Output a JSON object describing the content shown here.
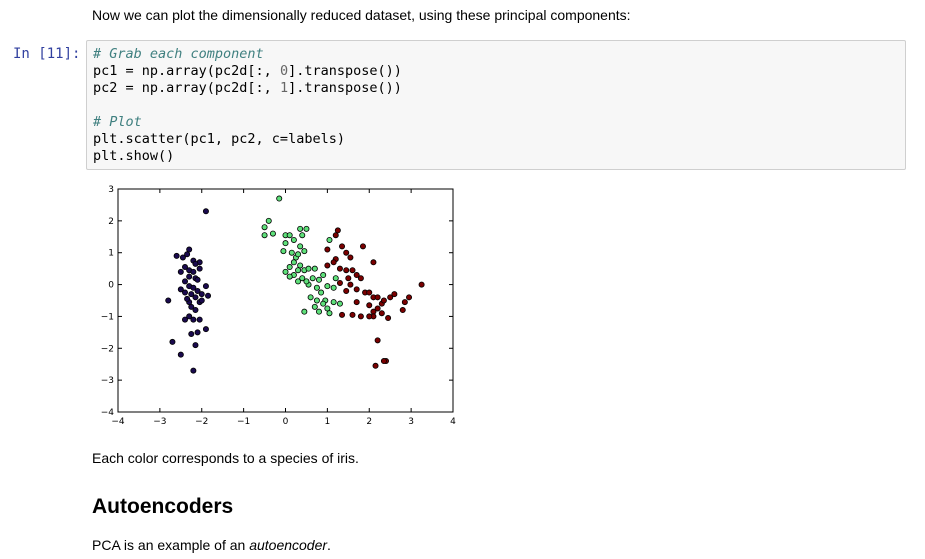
{
  "intro_text": "Now we can plot the dimensionally reduced dataset, using these principal components:",
  "cell": {
    "prompt": "In [11]:",
    "lines": [
      {
        "type": "comment",
        "text": "# Grab each component"
      },
      {
        "type": "code",
        "before": "pc1 = np.array(pc2d[:, ",
        "num": "0",
        "after": "].transpose())"
      },
      {
        "type": "code",
        "before": "pc2 = np.array(pc2d[:, ",
        "num": "1",
        "after": "].transpose())"
      },
      {
        "type": "blank",
        "text": ""
      },
      {
        "type": "comment",
        "text": "# Plot"
      },
      {
        "type": "code",
        "text": "plt.scatter(pc1, pc2, c=labels)"
      },
      {
        "type": "code",
        "text": "plt.show()"
      }
    ]
  },
  "chart_data": {
    "type": "scatter",
    "xlim": [
      -4,
      4
    ],
    "ylim": [
      -4,
      3
    ],
    "x_ticks": [
      "−4",
      "−3",
      "−2",
      "−1",
      "0",
      "1",
      "2",
      "3",
      "4"
    ],
    "y_ticks": [
      "−4",
      "−3",
      "−2",
      "−1",
      "0",
      "1",
      "2",
      "3"
    ],
    "grid": false,
    "colors": [
      "#1a0a4e",
      "#5ee07a",
      "#7a0000"
    ],
    "series": [
      {
        "color": "#1a0a4e",
        "points": [
          [
            -1.9,
            2.3
          ],
          [
            -2.6,
            0.9
          ],
          [
            -2.45,
            0.85
          ],
          [
            -2.3,
            1.1
          ],
          [
            -2.35,
            0.95
          ],
          [
            -2.2,
            0.75
          ],
          [
            -2.05,
            0.7
          ],
          [
            -2.15,
            0.65
          ],
          [
            -2.4,
            0.55
          ],
          [
            -2.5,
            0.4
          ],
          [
            -2.3,
            0.45
          ],
          [
            -2.2,
            0.4
          ],
          [
            -2.05,
            0.5
          ],
          [
            -2.3,
            0.25
          ],
          [
            -2.15,
            0.2
          ],
          [
            -2.4,
            0.1
          ],
          [
            -2.1,
            0.15
          ],
          [
            -1.9,
            -0.05
          ],
          [
            -2.0,
            -0.3
          ],
          [
            -1.85,
            -0.35
          ],
          [
            -2.3,
            -0.05
          ],
          [
            -2.2,
            -0.1
          ],
          [
            -2.1,
            -0.2
          ],
          [
            -2.4,
            -0.25
          ],
          [
            -2.25,
            -0.3
          ],
          [
            -2.15,
            -0.4
          ],
          [
            -2.3,
            -0.55
          ],
          [
            -2.05,
            -0.55
          ],
          [
            -2.25,
            -0.7
          ],
          [
            -2.15,
            -0.8
          ],
          [
            -2.3,
            -1.0
          ],
          [
            -2.2,
            -1.1
          ],
          [
            -2.05,
            -1.1
          ],
          [
            -1.9,
            -1.4
          ],
          [
            -2.1,
            -1.5
          ],
          [
            -2.25,
            -1.55
          ],
          [
            -2.4,
            -1.1
          ],
          [
            -2.7,
            -1.8
          ],
          [
            -2.5,
            -2.2
          ],
          [
            -2.15,
            -1.9
          ],
          [
            -2.2,
            -2.7
          ],
          [
            -2.8,
            -0.5
          ],
          [
            -2.0,
            -0.5
          ],
          [
            -2.35,
            -0.45
          ],
          [
            -2.5,
            -0.15
          ]
        ]
      },
      {
        "color": "#5ee07a",
        "points": [
          [
            -0.15,
            2.7
          ],
          [
            -0.4,
            2.0
          ],
          [
            -0.5,
            1.8
          ],
          [
            -0.5,
            1.55
          ],
          [
            -0.3,
            1.6
          ],
          [
            0.0,
            1.55
          ],
          [
            0.1,
            1.55
          ],
          [
            0.35,
            1.75
          ],
          [
            0.5,
            1.75
          ],
          [
            0.4,
            1.55
          ],
          [
            0.2,
            1.4
          ],
          [
            0.0,
            1.3
          ],
          [
            -0.05,
            1.05
          ],
          [
            0.15,
            1.0
          ],
          [
            0.35,
            1.2
          ],
          [
            0.45,
            1.05
          ],
          [
            0.25,
            0.85
          ],
          [
            0.2,
            0.7
          ],
          [
            0.35,
            0.6
          ],
          [
            0.1,
            0.55
          ],
          [
            0.3,
            0.45
          ],
          [
            0.45,
            0.45
          ],
          [
            0.55,
            0.5
          ],
          [
            0.7,
            0.5
          ],
          [
            0.0,
            0.4
          ],
          [
            0.2,
            0.3
          ],
          [
            0.4,
            0.2
          ],
          [
            0.65,
            0.2
          ],
          [
            0.8,
            0.15
          ],
          [
            0.1,
            0.25
          ],
          [
            0.3,
            0.1
          ],
          [
            0.55,
            0.0
          ],
          [
            0.75,
            -0.1
          ],
          [
            1.0,
            -0.05
          ],
          [
            0.85,
            -0.25
          ],
          [
            0.6,
            -0.4
          ],
          [
            0.75,
            -0.5
          ],
          [
            0.95,
            -0.5
          ],
          [
            0.9,
            -0.6
          ],
          [
            0.7,
            -0.7
          ],
          [
            1.0,
            -0.75
          ],
          [
            1.15,
            -0.55
          ],
          [
            1.3,
            -0.6
          ],
          [
            0.45,
            -0.85
          ],
          [
            0.8,
            -0.85
          ],
          [
            1.05,
            -0.9
          ],
          [
            1.05,
            1.4
          ],
          [
            1.2,
            0.2
          ],
          [
            0.5,
            0.1
          ],
          [
            0.9,
            0.3
          ],
          [
            1.15,
            -0.1
          ],
          [
            0.3,
            0.95
          ]
        ]
      },
      {
        "color": "#7a0000",
        "points": [
          [
            1.25,
            1.7
          ],
          [
            1.2,
            1.55
          ],
          [
            1.35,
            1.2
          ],
          [
            1.0,
            1.1
          ],
          [
            1.45,
            1.0
          ],
          [
            1.2,
            0.8
          ],
          [
            1.0,
            0.6
          ],
          [
            1.15,
            0.7
          ],
          [
            1.3,
            0.5
          ],
          [
            1.45,
            0.45
          ],
          [
            1.6,
            0.45
          ],
          [
            1.7,
            0.3
          ],
          [
            1.5,
            0.2
          ],
          [
            1.3,
            0.05
          ],
          [
            1.55,
            0.0
          ],
          [
            1.45,
            -0.2
          ],
          [
            1.7,
            -0.15
          ],
          [
            1.9,
            -0.25
          ],
          [
            1.7,
            -0.55
          ],
          [
            2.0,
            -0.25
          ],
          [
            2.1,
            -0.4
          ],
          [
            2.2,
            -0.4
          ],
          [
            2.0,
            -0.65
          ],
          [
            2.2,
            -0.75
          ],
          [
            2.3,
            -0.6
          ],
          [
            2.1,
            -0.85
          ],
          [
            1.8,
            -1.0
          ],
          [
            1.6,
            -0.95
          ],
          [
            1.35,
            -0.95
          ],
          [
            2.3,
            -0.9
          ],
          [
            2.5,
            -0.4
          ],
          [
            2.6,
            -0.3
          ],
          [
            2.35,
            -0.5
          ],
          [
            2.85,
            -0.55
          ],
          [
            2.8,
            -0.8
          ],
          [
            2.45,
            -1.05
          ],
          [
            2.1,
            -1.0
          ],
          [
            3.25,
            0.0
          ],
          [
            2.95,
            -0.4
          ],
          [
            2.4,
            -2.4
          ],
          [
            2.35,
            -2.4
          ],
          [
            2.15,
            -2.55
          ],
          [
            2.2,
            -1.75
          ],
          [
            2.0,
            -1.0
          ],
          [
            2.1,
            0.7
          ],
          [
            1.85,
            1.2
          ],
          [
            1.55,
            0.85
          ],
          [
            1.8,
            0.2
          ]
        ]
      }
    ]
  },
  "caption_text": "Each color corresponds to a species of iris.",
  "heading_text": "Autoencoders",
  "pca_text": {
    "before": "PCA is an example of an ",
    "em": "autoencoder",
    "after": "."
  }
}
